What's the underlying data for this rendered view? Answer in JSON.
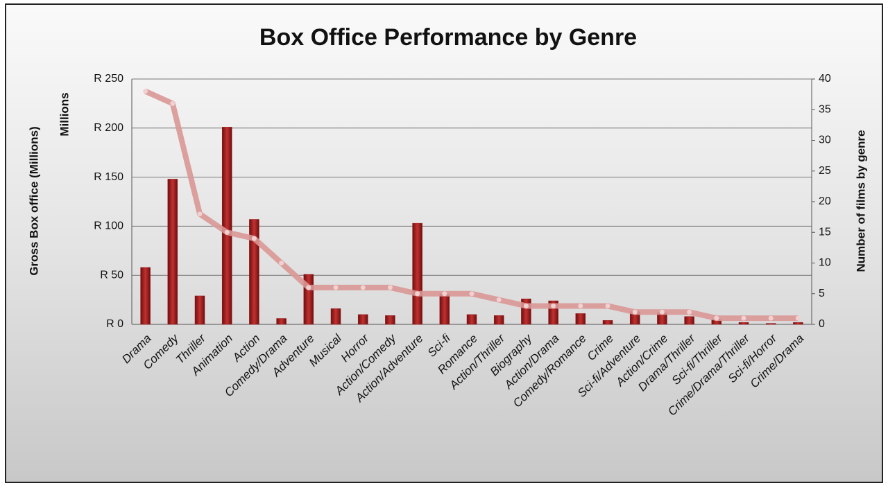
{
  "chart_data": {
    "type": "bar-line",
    "title": "Box Office  Performance by Genre",
    "y_label": "Gross Box office (Millions)",
    "y_unit_label": "Millions",
    "y2_label": "Number of films by genre",
    "categories": [
      "Drama",
      "Comedy",
      "Thriller",
      "Animation",
      "Action",
      "Comedy/Drama",
      "Adventure",
      "Musical",
      "Horror",
      "Action/Comedy",
      "Action/Adventure",
      "Sci-fi",
      "Romance",
      "Action/Thriller",
      "Biography",
      "Action/Drama",
      "Comedy/Romance",
      "Crime",
      "Sci-fi/Adventure",
      "Action/Crime",
      "Drama/Thriller",
      "Sci-fi/Thriller",
      "Crime/Drama/Thriller",
      "Sci-fi/Horror",
      "Crime/Drama"
    ],
    "series": [
      {
        "type": "bar",
        "color": "#9e1c1c",
        "values": [
          58,
          148,
          29,
          201,
          107,
          6,
          51,
          16,
          10,
          9,
          103,
          31,
          10,
          9,
          26,
          24,
          11,
          4,
          13,
          12,
          8,
          5,
          2,
          1,
          2
        ]
      },
      {
        "type": "line",
        "axis": "y2",
        "color": "#d99795",
        "values": [
          38,
          36,
          18,
          15,
          14,
          10,
          6,
          6,
          6,
          6,
          5,
          5,
          5,
          4,
          3,
          3,
          3,
          3,
          2,
          2,
          2,
          1,
          1,
          1,
          1
        ]
      }
    ],
    "ylim": [
      0,
      250
    ],
    "yticks": [
      {
        "value": 0,
        "label": "R 0"
      },
      {
        "value": 50,
        "label": "R 50"
      },
      {
        "value": 100,
        "label": "R 100"
      },
      {
        "value": 150,
        "label": "R 150"
      },
      {
        "value": 200,
        "label": "R 200"
      },
      {
        "value": 250,
        "label": "R 250"
      }
    ],
    "y2lim": [
      0,
      40
    ],
    "y2ticks": [
      0,
      5,
      10,
      15,
      20,
      25,
      30,
      35,
      40
    ],
    "grid": true
  }
}
